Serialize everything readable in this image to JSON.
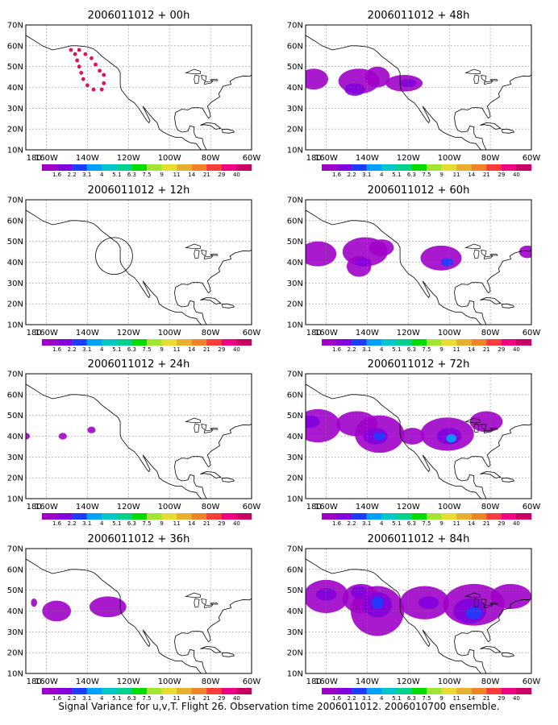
{
  "figure": {
    "caption": "Signal Variance for u,v,T. Flight 26. Observation time 2006011012. 2006010700 ensemble."
  },
  "axes": {
    "lon_ticks": [
      "180",
      "160W",
      "140W",
      "120W",
      "100W",
      "80W",
      "60W"
    ],
    "lat_ticks": [
      "70N",
      "60N",
      "50N",
      "40N",
      "30N",
      "20N",
      "10N"
    ],
    "lon_range": [
      -170,
      -60
    ],
    "lat_range": [
      10,
      70
    ],
    "grid": "dotted"
  },
  "colorbar": {
    "labels": [
      "1.6",
      "2.2",
      "3.1",
      "4",
      "5.1",
      "6.3",
      "7.5",
      "9",
      "11",
      "14",
      "21",
      "29",
      "40"
    ],
    "colors": [
      "#a000c8",
      "#8200dc",
      "#1e3cff",
      "#00a0ff",
      "#00c8c8",
      "#00d28c",
      "#00dc00",
      "#a0e632",
      "#e6dc32",
      "#e6af2d",
      "#f08228",
      "#fa3c3c",
      "#f00082",
      "#c80064"
    ]
  },
  "panels": [
    {
      "title": "2006011012 + 00h",
      "markers": [
        {
          "lon": -148,
          "lat": 58
        },
        {
          "lon": -146,
          "lat": 56
        },
        {
          "lon": -145,
          "lat": 53
        },
        {
          "lon": -144,
          "lat": 50
        },
        {
          "lon": -143,
          "lat": 47
        },
        {
          "lon": -142,
          "lat": 44
        },
        {
          "lon": -140,
          "lat": 41
        },
        {
          "lon": -137,
          "lat": 39
        },
        {
          "lon": -133,
          "lat": 39
        },
        {
          "lon": -132,
          "lat": 42
        },
        {
          "lon": -132,
          "lat": 46
        },
        {
          "lon": -134,
          "lat": 48
        },
        {
          "lon": -136,
          "lat": 51
        },
        {
          "lon": -138,
          "lat": 54
        },
        {
          "lon": -141,
          "lat": 56
        },
        {
          "lon": -144,
          "lat": 58
        }
      ],
      "blobs": []
    },
    {
      "title": "2006011012 + 48h",
      "blobs": [
        {
          "lon": -166,
          "lat": 44,
          "rx": 7,
          "ry": 5,
          "level": 0
        },
        {
          "lon": -144,
          "lat": 43,
          "rx": 10,
          "ry": 6,
          "level": 0
        },
        {
          "lon": -135,
          "lat": 45,
          "rx": 6,
          "ry": 5,
          "level": 0
        },
        {
          "lon": -146,
          "lat": 39,
          "rx": 5,
          "ry": 3,
          "level": 1
        },
        {
          "lon": -122,
          "lat": 42,
          "rx": 9,
          "ry": 4,
          "level": 0
        },
        {
          "lon": -120,
          "lat": 42,
          "rx": 4,
          "ry": 2,
          "level": 1
        }
      ]
    },
    {
      "title": "2006011012 + 12h",
      "circle": {
        "lon": -127,
        "lat": 43,
        "r": 9
      },
      "blobs": []
    },
    {
      "title": "2006011012 + 60h",
      "blobs": [
        {
          "lon": -164,
          "lat": 44,
          "rx": 9,
          "ry": 6,
          "level": 0
        },
        {
          "lon": -141,
          "lat": 45,
          "rx": 11,
          "ry": 7,
          "level": 0
        },
        {
          "lon": -144,
          "lat": 38,
          "rx": 6,
          "ry": 5,
          "level": 0
        },
        {
          "lon": -133,
          "lat": 47,
          "rx": 6,
          "ry": 4,
          "level": 0
        },
        {
          "lon": -104,
          "lat": 42,
          "rx": 10,
          "ry": 6,
          "level": 0
        },
        {
          "lon": -101,
          "lat": 40,
          "rx": 3,
          "ry": 2,
          "level": 2
        },
        {
          "lon": -62,
          "lat": 45,
          "rx": 4,
          "ry": 3,
          "level": 0
        },
        {
          "lon": -142,
          "lat": 40,
          "rx": 4,
          "ry": 2,
          "level": 1
        }
      ]
    },
    {
      "title": "2006011012 + 24h",
      "blobs": [
        {
          "lon": -170,
          "lat": 40,
          "rx": 2,
          "ry": 1.6,
          "level": 0
        },
        {
          "lon": -152,
          "lat": 40,
          "rx": 2,
          "ry": 1.6,
          "level": 0
        },
        {
          "lon": -138,
          "lat": 43,
          "rx": 2,
          "ry": 1.6,
          "level": 0
        }
      ]
    },
    {
      "title": "2006011012 + 72h",
      "blobs": [
        {
          "lon": -164,
          "lat": 45,
          "rx": 11,
          "ry": 8,
          "level": 0
        },
        {
          "lon": -145,
          "lat": 46,
          "rx": 10,
          "ry": 6,
          "level": 0
        },
        {
          "lon": -134,
          "lat": 41,
          "rx": 12,
          "ry": 9,
          "level": 0
        },
        {
          "lon": -118,
          "lat": 40,
          "rx": 6,
          "ry": 4,
          "level": 0
        },
        {
          "lon": -101,
          "lat": 41,
          "rx": 13,
          "ry": 8,
          "level": 0
        },
        {
          "lon": -82,
          "lat": 47,
          "rx": 8,
          "ry": 5,
          "level": 0
        },
        {
          "lon": -136,
          "lat": 40,
          "rx": 6,
          "ry": 4,
          "level": 1
        },
        {
          "lon": -134,
          "lat": 40,
          "rx": 3,
          "ry": 2,
          "level": 2
        },
        {
          "lon": -100,
          "lat": 40,
          "rx": 6,
          "ry": 4,
          "level": 1
        },
        {
          "lon": -99,
          "lat": 39,
          "rx": 2.5,
          "ry": 2,
          "level": 3
        },
        {
          "lon": -168,
          "lat": 47,
          "rx": 5,
          "ry": 3,
          "level": 1
        }
      ]
    },
    {
      "title": "2006011012 + 36h",
      "blobs": [
        {
          "lon": -166,
          "lat": 44,
          "rx": 1.5,
          "ry": 2,
          "level": 0
        },
        {
          "lon": -155,
          "lat": 40,
          "rx": 7,
          "ry": 5,
          "level": 0
        },
        {
          "lon": -130,
          "lat": 42,
          "rx": 9,
          "ry": 5,
          "level": 0
        }
      ]
    },
    {
      "title": "2006011012 + 84h",
      "blobs": [
        {
          "lon": -160,
          "lat": 47,
          "rx": 11,
          "ry": 8,
          "level": 0
        },
        {
          "lon": -143,
          "lat": 46,
          "rx": 9,
          "ry": 7,
          "level": 0
        },
        {
          "lon": -135,
          "lat": 40,
          "rx": 13,
          "ry": 12,
          "level": 0
        },
        {
          "lon": -112,
          "lat": 44,
          "rx": 12,
          "ry": 8,
          "level": 0
        },
        {
          "lon": -88,
          "lat": 43,
          "rx": 15,
          "ry": 10,
          "level": 0
        },
        {
          "lon": -70,
          "lat": 47,
          "rx": 10,
          "ry": 6,
          "level": 0
        },
        {
          "lon": -160,
          "lat": 48,
          "rx": 5,
          "ry": 3,
          "level": 1
        },
        {
          "lon": -144,
          "lat": 49,
          "rx": 4,
          "ry": 3,
          "level": 1
        },
        {
          "lon": -135,
          "lat": 43,
          "rx": 7,
          "ry": 6,
          "level": 1
        },
        {
          "lon": -135,
          "lat": 44,
          "rx": 3,
          "ry": 3,
          "level": 2
        },
        {
          "lon": -90,
          "lat": 40,
          "rx": 8,
          "ry": 6,
          "level": 1
        },
        {
          "lon": -88,
          "lat": 39,
          "rx": 4,
          "ry": 3,
          "level": 2
        },
        {
          "lon": -110,
          "lat": 44,
          "rx": 5,
          "ry": 3,
          "level": 1
        }
      ]
    }
  ]
}
